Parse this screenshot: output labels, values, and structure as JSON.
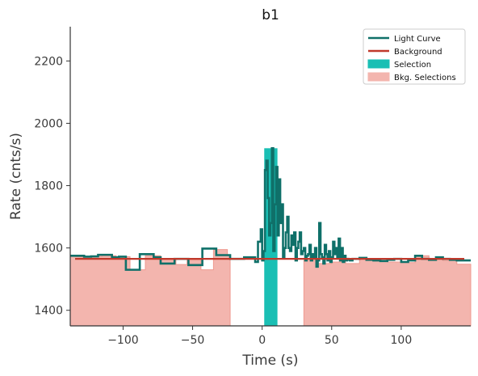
{
  "chart_data": {
    "type": "line",
    "title": "b1",
    "xlabel": "Time (s)",
    "ylabel": "Rate (cnts/s)",
    "xlim": [
      -138,
      150
    ],
    "ylim": [
      1350,
      2310
    ],
    "xticks": [
      -100,
      -50,
      0,
      50,
      100
    ],
    "xtick_labels": [
      "−100",
      "−50",
      "0",
      "50",
      "100"
    ],
    "yticks": [
      1400,
      1600,
      1800,
      2000,
      2200
    ],
    "ytick_labels": [
      "1400",
      "1600",
      "1800",
      "2000",
      "2200"
    ],
    "grid": false,
    "legend_position": "top-right",
    "colors": {
      "light_curve": "#0f7069",
      "background": "#c0392b",
      "selection": "#1abfb4",
      "bkg_selection": "#f3b5ae",
      "bkg_selection_edge": "#ef9a90"
    },
    "legend": [
      {
        "label": "Light Curve",
        "kind": "line",
        "color": "#0f7069"
      },
      {
        "label": "Background",
        "kind": "line",
        "color": "#c0392b"
      },
      {
        "label": "Selection",
        "kind": "patch",
        "color": "#1abfb4"
      },
      {
        "label": "Bkg. Selections",
        "kind": "patch",
        "color": "#f3b5ae"
      }
    ],
    "background_level": 1565,
    "selection": {
      "start": 1.5,
      "end": 11,
      "floor": 1350
    },
    "bkg_selections": [
      {
        "x": [
          -138,
          -134,
          -129,
          -125,
          -120,
          -115,
          -110,
          -105,
          -100,
          -95,
          -90,
          -84,
          -78,
          -73,
          -68,
          -62,
          -58,
          -54,
          -49,
          -44,
          -40,
          -35,
          -30,
          -25,
          -23
        ],
        "y": [
          1573,
          1572,
          1570,
          1572,
          1573,
          1575,
          1575,
          1572,
          1572,
          1530,
          1530,
          1575,
          1575,
          1562,
          1562,
          1547,
          1547,
          1562,
          1562,
          1530,
          1530,
          1595,
          1595,
          1575,
          1575
        ]
      },
      {
        "x": [
          30,
          35,
          40,
          45,
          50,
          55,
          60,
          65,
          70,
          75,
          80,
          85,
          90,
          95,
          100,
          105,
          110,
          115,
          120,
          125,
          130,
          135,
          140,
          145,
          150
        ],
        "y": [
          1560,
          1560,
          1550,
          1550,
          1555,
          1555,
          1550,
          1550,
          1565,
          1565,
          1558,
          1558,
          1555,
          1555,
          1553,
          1553,
          1575,
          1575,
          1565,
          1565,
          1560,
          1560,
          1548,
          1548,
          1548
        ]
      }
    ],
    "series": [
      {
        "name": "Light Curve",
        "x": [
          -138,
          -133,
          -128,
          -123,
          -118,
          -113,
          -108,
          -103,
          -98,
          -93,
          -88,
          -83,
          -78,
          -73,
          -68,
          -63,
          -58,
          -53,
          -48,
          -43,
          -38,
          -33,
          -28,
          -23,
          -18,
          -13,
          -8,
          -5,
          -3,
          -1,
          0,
          1,
          2,
          3,
          4,
          5,
          6,
          7,
          8,
          9,
          10,
          11,
          12,
          13,
          14,
          15,
          16,
          17,
          18,
          19,
          20,
          21,
          22,
          23,
          24,
          25,
          26,
          27,
          28,
          29,
          30,
          31,
          32,
          33,
          34,
          35,
          36,
          37,
          38,
          39,
          40,
          41,
          42,
          43,
          44,
          45,
          46,
          47,
          48,
          49,
          50,
          51,
          52,
          53,
          54,
          55,
          56,
          57,
          58,
          59,
          60,
          61,
          62,
          63,
          64,
          65,
          70,
          75,
          80,
          85,
          90,
          95,
          100,
          105,
          110,
          115,
          120,
          125,
          130,
          135,
          140,
          145,
          150
        ],
        "y": [
          1575,
          1575,
          1572,
          1573,
          1578,
          1578,
          1570,
          1572,
          1530,
          1530,
          1580,
          1580,
          1570,
          1550,
          1550,
          1565,
          1565,
          1545,
          1545,
          1598,
          1598,
          1577,
          1577,
          1565,
          1565,
          1570,
          1570,
          1555,
          1620,
          1660,
          1560,
          1590,
          1850,
          1880,
          1760,
          1640,
          1680,
          1920,
          1590,
          1740,
          1860,
          1640,
          1820,
          1680,
          1740,
          1570,
          1600,
          1650,
          1700,
          1600,
          1590,
          1640,
          1610,
          1650,
          1560,
          1600,
          1620,
          1650,
          1580,
          1590,
          1600,
          1560,
          1575,
          1580,
          1610,
          1560,
          1580,
          1570,
          1600,
          1540,
          1560,
          1680,
          1580,
          1570,
          1550,
          1610,
          1580,
          1560,
          1590,
          1555,
          1570,
          1620,
          1580,
          1600,
          1570,
          1630,
          1560,
          1600,
          1555,
          1575,
          1560,
          1565,
          1562,
          1560,
          1560,
          1565,
          1568,
          1562,
          1560,
          1558,
          1562,
          1565,
          1555,
          1560,
          1575,
          1565,
          1562,
          1570,
          1565,
          1562,
          1560,
          1560,
          1560
        ]
      },
      {
        "name": "Background",
        "x": [
          -138,
          150
        ],
        "y": [
          1565,
          1565
        ]
      }
    ]
  }
}
